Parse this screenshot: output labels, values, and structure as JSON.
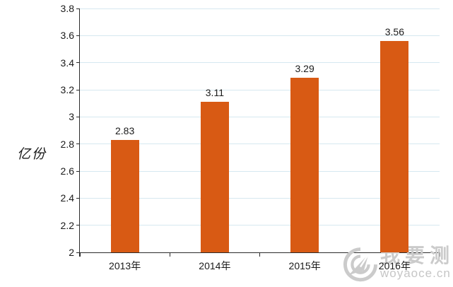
{
  "chart_data": {
    "type": "bar",
    "title": "",
    "categories": [
      "2013年",
      "2014年",
      "2015年",
      "2016年"
    ],
    "values": [
      2.83,
      3.11,
      3.29,
      3.56
    ],
    "data_labels": [
      "2.83",
      "3.11",
      "3.29",
      "3.56"
    ],
    "xlabel": "",
    "ylabel": "亿份",
    "ylim": [
      2,
      3.8
    ],
    "ytick_step": 0.2,
    "ytick_labels": [
      "2",
      "2.2",
      "2.4",
      "2.6",
      "2.8",
      "3",
      "3.2",
      "3.4",
      "3.6",
      "3.8"
    ],
    "grid": true,
    "legend_position": "none",
    "bar_color": "#D85A14",
    "gridline_color": "#D6E8F0",
    "axis_color": "#2b2b2b",
    "text_color": "#1a1a1a"
  },
  "watermark": {
    "brand_cn": "我要测",
    "brand_url": "woyaoce.cn",
    "color": "#cbcbcb",
    "logo": "dart-target-icon"
  }
}
